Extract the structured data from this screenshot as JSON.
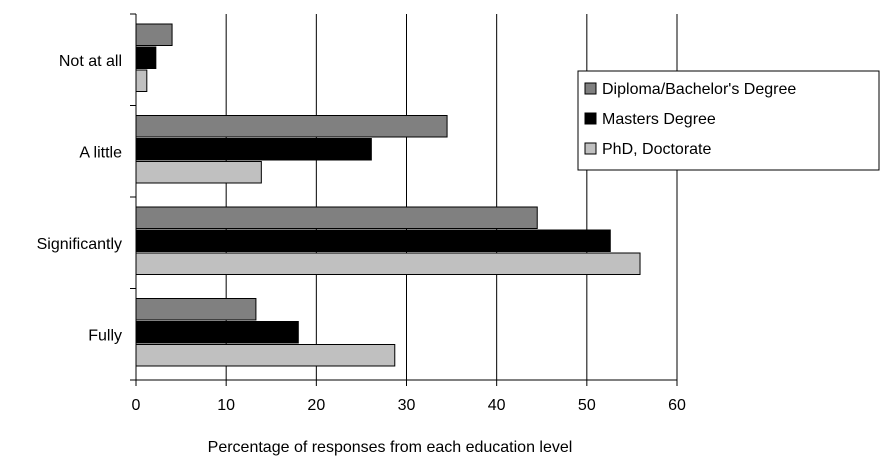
{
  "chart_data": {
    "type": "bar",
    "orientation": "horizontal",
    "title": "",
    "xlabel": "Percentage of responses from each education level",
    "ylabel": "",
    "xlim": [
      0,
      60
    ],
    "xticks": [
      0,
      10,
      20,
      30,
      40,
      50,
      60
    ],
    "grid": "vertical",
    "legend_position": "right",
    "categories": [
      "Not at all",
      "A little",
      "Significantly",
      "Fully"
    ],
    "series": [
      {
        "name": "Diploma/Bachelor's Degree",
        "color": "#808080",
        "values": [
          4.0,
          34.5,
          44.5,
          13.3
        ]
      },
      {
        "name": "Masters Degree",
        "color": "#000000",
        "values": [
          2.2,
          26.1,
          52.6,
          18.0
        ]
      },
      {
        "name": "PhD, Doctorate",
        "color": "#c0c0c0",
        "values": [
          1.2,
          13.9,
          55.9,
          28.7
        ]
      }
    ]
  }
}
